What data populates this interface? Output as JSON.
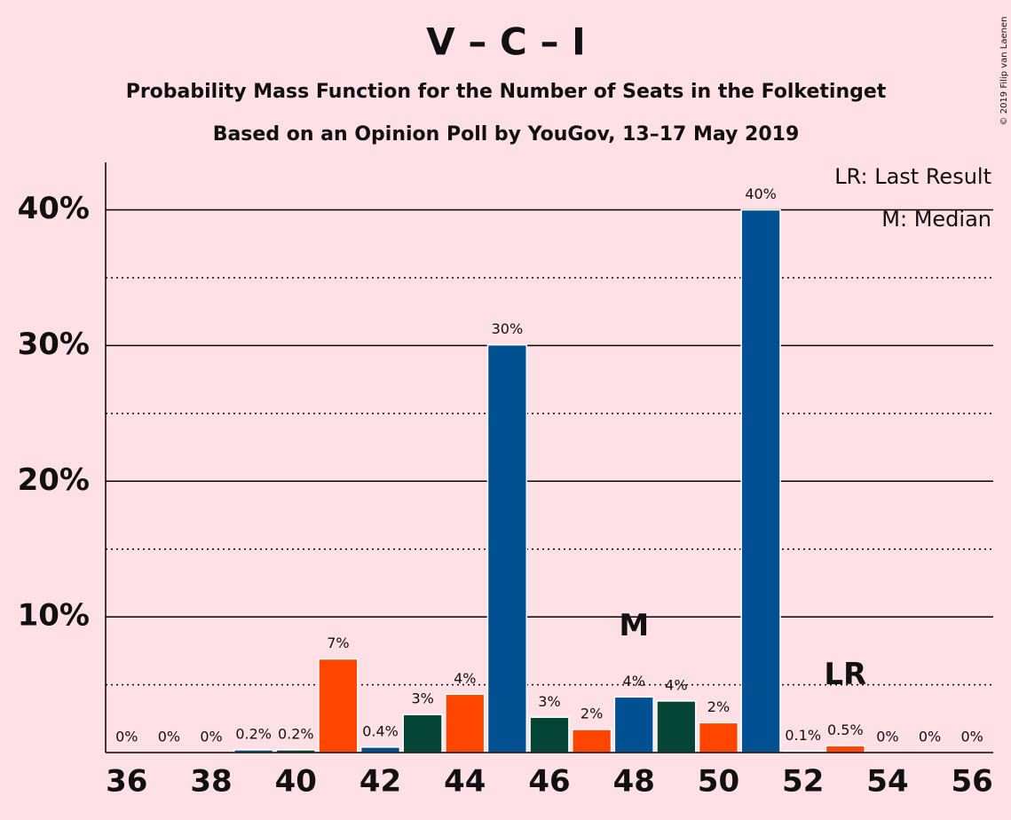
{
  "chart_data": {
    "type": "bar",
    "title": "V – C – I",
    "subtitle": "Probability Mass Function for the Number of Seats in the Folketinget",
    "subtitle2": "Based on an Opinion Poll by YouGov, 13–17 May 2019",
    "credit": "© 2019 Filip van Laenen",
    "legend": [
      "LR: Last Result",
      "M: Median"
    ],
    "x": [
      36,
      37,
      38,
      39,
      40,
      41,
      42,
      43,
      44,
      45,
      46,
      47,
      48,
      49,
      50,
      51,
      52,
      53,
      54,
      55,
      56
    ],
    "values": [
      0,
      0,
      0,
      0.2,
      0.2,
      6.9,
      0.4,
      2.8,
      4.3,
      30.05,
      2.6,
      1.7,
      4.1,
      3.8,
      2.2,
      40,
      0.1,
      0.5,
      0,
      0,
      0
    ],
    "value_labels": [
      "0%",
      "0%",
      "0%",
      "0.2%",
      "0.2%",
      "7%",
      "0.4%",
      "3%",
      "4%",
      "30%",
      "3%",
      "2%",
      "4%",
      "4%",
      "2%",
      "40%",
      "0.1%",
      "0.5%",
      "0%",
      "0%",
      "0%"
    ],
    "colors": [
      "#005092",
      "#044535",
      "#ff4500",
      "#005092",
      "#044535",
      "#ff4500",
      "#005092",
      "#044535",
      "#ff4500",
      "#005092",
      "#044535",
      "#ff4500",
      "#005092",
      "#044535",
      "#ff4500",
      "#005092",
      "#044535",
      "#ff4500",
      "#005092",
      "#044535",
      "#ff4500"
    ],
    "annotations": [
      {
        "text": "M",
        "x": 48
      },
      {
        "text": "LR",
        "x": 53
      }
    ],
    "xlim": [
      35.5,
      56.5
    ],
    "xticks": [
      36,
      38,
      40,
      42,
      44,
      46,
      48,
      50,
      52,
      54,
      56
    ],
    "ylim": [
      0,
      43.5
    ],
    "yticks": [
      {
        "value": 10,
        "label": "10%"
      },
      {
        "value": 20,
        "label": "20%"
      },
      {
        "value": 30,
        "label": "30%"
      },
      {
        "value": 40,
        "label": "40%"
      }
    ],
    "minor_yticks": [
      5,
      15,
      25,
      35
    ],
    "grid": true
  }
}
